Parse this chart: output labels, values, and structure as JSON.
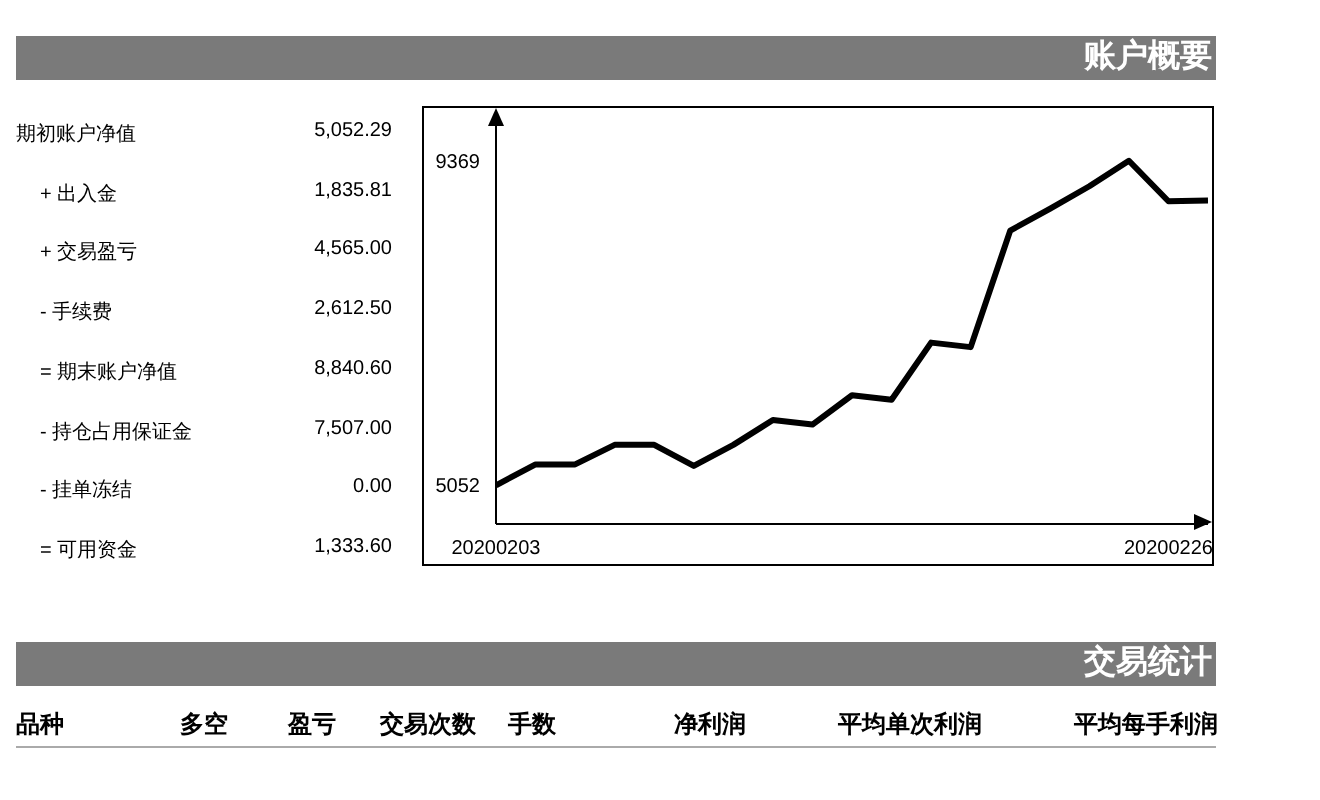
{
  "chart_data": [
    {
      "type": "other",
      "title": "账户概要",
      "annotations": [
        "期初账户净值",
        "5,052.29",
        "+ 出入金",
        "1,835.81",
        "+ 交易盈亏",
        "4,565.00",
        "- 手续费",
        "2,612.50",
        "= 期末账户净值",
        "8,840.60",
        "- 持仓占用保证金",
        "7,507.00",
        "- 挂单冻结",
        "0.00",
        "= 可用资金",
        "1,333.60"
      ]
    },
    {
      "type": "line",
      "categories": [
        "20200203",
        null,
        null,
        null,
        null,
        null,
        null,
        null,
        null,
        null,
        null,
        null,
        null,
        null,
        null,
        null,
        null,
        "20200226",
        null
      ],
      "series": [
        {
          "color": "#000000",
          "values": [
            5052,
            5330,
            5330,
            5590,
            5590,
            5310,
            5590,
            5920,
            5860,
            6250,
            6190,
            6950,
            6890,
            8440,
            8730,
            9030,
            9369,
            8830,
            8840
          ]
        }
      ],
      "ylim": [
        4537,
        9858
      ],
      "yticks": [
        5052,
        9369
      ],
      "marker": "none",
      "line_style": "solid"
    },
    {
      "type": "other",
      "title": "交易统计",
      "annotations": [
        "品种",
        "多空",
        "盈亏",
        "交易次数",
        "手数",
        "净利润",
        "平均单次利润",
        "平均每手利润"
      ]
    }
  ]
}
